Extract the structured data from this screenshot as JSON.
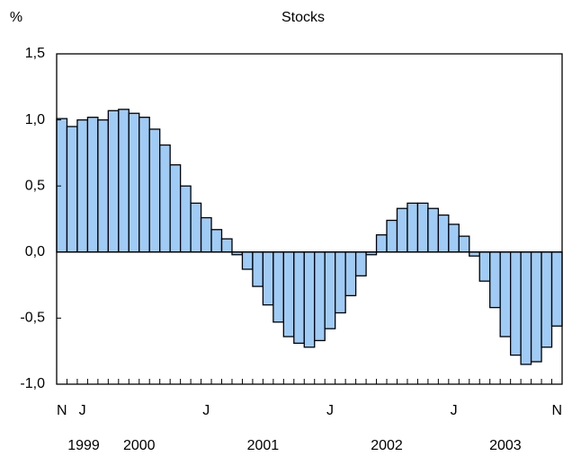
{
  "chart_data": {
    "type": "bar",
    "title": "Stocks",
    "ylabel": "%",
    "categories": [
      "N",
      null,
      "J",
      null,
      null,
      null,
      null,
      null,
      null,
      null,
      null,
      null,
      null,
      null,
      "J",
      null,
      null,
      null,
      null,
      null,
      null,
      null,
      null,
      null,
      null,
      null,
      "J",
      null,
      null,
      null,
      null,
      null,
      null,
      null,
      null,
      null,
      null,
      null,
      "J",
      null,
      null,
      null,
      null,
      null,
      null,
      null,
      null,
      null,
      "N"
    ],
    "groups": [
      "1999",
      "2000",
      "2001",
      "2002",
      "2003"
    ],
    "values": [
      1.01,
      0.95,
      1.0,
      1.02,
      1.0,
      1.07,
      1.08,
      1.05,
      1.02,
      0.93,
      0.81,
      0.66,
      0.5,
      0.37,
      0.26,
      0.17,
      0.1,
      -0.02,
      -0.13,
      -0.26,
      -0.4,
      -0.53,
      -0.64,
      -0.69,
      -0.72,
      -0.67,
      -0.58,
      -0.46,
      -0.33,
      -0.18,
      -0.02,
      0.13,
      0.24,
      0.33,
      0.37,
      0.37,
      0.33,
      0.28,
      0.21,
      0.12,
      -0.03,
      -0.22,
      -0.42,
      -0.64,
      -0.78,
      -0.85,
      -0.83,
      -0.72,
      -0.56
    ],
    "color": "#9fcbf5",
    "ylim": [
      -1.0,
      1.5
    ],
    "yticks": [
      {
        "value": -1.0,
        "label": "-1,0"
      },
      {
        "value": -0.5,
        "label": "-0,5"
      },
      {
        "value": 0.0,
        "label": "0,0"
      },
      {
        "value": 0.5,
        "label": "0,5"
      },
      {
        "value": 1.0,
        "label": "1,0"
      },
      {
        "value": 1.5,
        "label": "1,5"
      }
    ]
  }
}
